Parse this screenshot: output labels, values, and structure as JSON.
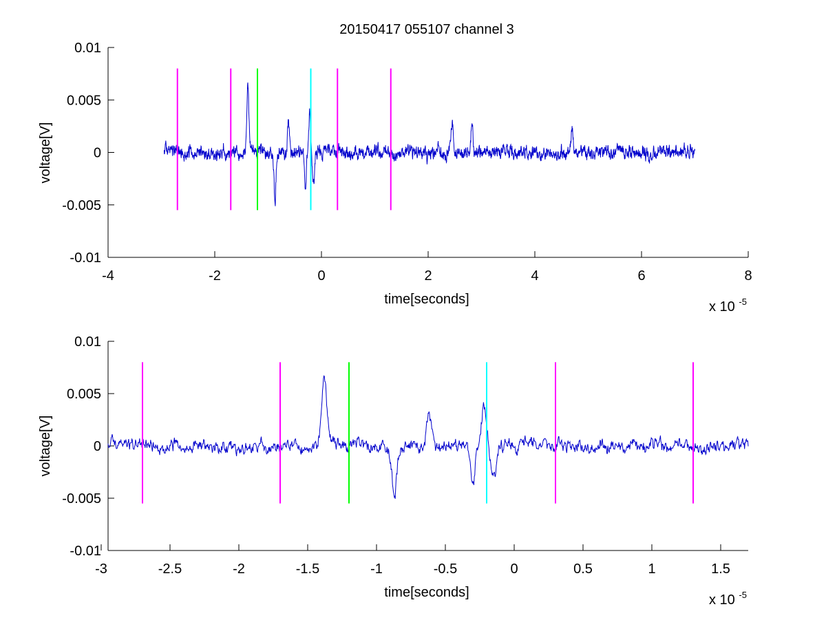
{
  "figure": {
    "title": "20150417 055107 channel 3"
  },
  "chart_data": [
    {
      "type": "line",
      "title": "20150417 055107 channel 3",
      "xlabel": "time[seconds]",
      "ylabel": "voltage[V]",
      "x_exponent_base": "x 10",
      "x_exponent_power": "-5",
      "xlim": [
        -4,
        8
      ],
      "ylim": [
        -0.01,
        0.01
      ],
      "xticks": [
        -4,
        -2,
        0,
        2,
        4,
        6,
        8
      ],
      "xtick_labels": [
        "-4",
        "-2",
        "0",
        "2",
        "4",
        "6",
        "8"
      ],
      "yticks": [
        -0.01,
        -0.005,
        0,
        0.005,
        0.01
      ],
      "ytick_labels": [
        "-0.01",
        "-0.005",
        "0",
        "0.005",
        "0.01"
      ],
      "grid": false,
      "legend": "none",
      "signal": {
        "color": "#0000cc",
        "x_start": -2.95,
        "x_end": 7.0,
        "noise_amplitude": 0.0009,
        "events": [
          {
            "x": -1.38,
            "v": 0.0068
          },
          {
            "x": -0.87,
            "v": -0.0045
          },
          {
            "x": -0.62,
            "v": 0.0028
          },
          {
            "x": -0.3,
            "v": -0.0035
          },
          {
            "x": -0.22,
            "v": 0.0038
          },
          {
            "x": -0.15,
            "v": -0.0032
          },
          {
            "x": 2.45,
            "v": 0.0028
          },
          {
            "x": 2.82,
            "v": 0.0032
          },
          {
            "x": 4.7,
            "v": 0.0022
          }
        ]
      },
      "markers": [
        {
          "x": -2.7,
          "y_top": 0.008,
          "y_bottom": -0.0055,
          "color": "#ff00ff"
        },
        {
          "x": -1.7,
          "y_top": 0.008,
          "y_bottom": -0.0055,
          "color": "#ff00ff"
        },
        {
          "x": -1.2,
          "y_top": 0.008,
          "y_bottom": -0.0055,
          "color": "#00ff00"
        },
        {
          "x": -0.2,
          "y_top": 0.008,
          "y_bottom": -0.0055,
          "color": "#00ffff"
        },
        {
          "x": 0.3,
          "y_top": 0.008,
          "y_bottom": -0.0055,
          "color": "#ff00ff"
        },
        {
          "x": 1.3,
          "y_top": 0.008,
          "y_bottom": -0.0055,
          "color": "#ff00ff"
        }
      ]
    },
    {
      "type": "line",
      "title": "",
      "xlabel": "time[seconds]",
      "ylabel": "voltage[V]",
      "x_exponent_base": "x 10",
      "x_exponent_power": "-5",
      "xlim": [
        -2.95,
        1.7
      ],
      "ylim": [
        -0.01,
        0.01
      ],
      "xticks": [
        -3,
        -2.5,
        -2,
        -1.5,
        -1,
        -0.5,
        0,
        0.5,
        1,
        1.5
      ],
      "xtick_labels": [
        "-3",
        "-2.5",
        "-2",
        "-1.5",
        "-1",
        "-0.5",
        "0",
        "0.5",
        "1",
        "1.5"
      ],
      "yticks": [
        -0.01,
        -0.005,
        0,
        0.005,
        0.01
      ],
      "ytick_labels": [
        "-0.01",
        "-0.005",
        "0",
        "0.005",
        "0.01"
      ],
      "grid": false,
      "legend": "none",
      "signal": {
        "color": "#0000cc",
        "x_start": -2.95,
        "x_end": 1.7,
        "noise_amplitude": 0.0009,
        "events": [
          {
            "x": -1.38,
            "v": 0.0068
          },
          {
            "x": -0.87,
            "v": -0.0045
          },
          {
            "x": -0.62,
            "v": 0.0028
          },
          {
            "x": -0.3,
            "v": -0.0035
          },
          {
            "x": -0.22,
            "v": 0.0038
          },
          {
            "x": -0.15,
            "v": -0.0032
          }
        ]
      },
      "markers": [
        {
          "x": -2.7,
          "y_top": 0.008,
          "y_bottom": -0.0055,
          "color": "#ff00ff"
        },
        {
          "x": -1.7,
          "y_top": 0.008,
          "y_bottom": -0.0055,
          "color": "#ff00ff"
        },
        {
          "x": -1.2,
          "y_top": 0.008,
          "y_bottom": -0.0055,
          "color": "#00ff00"
        },
        {
          "x": -0.2,
          "y_top": 0.008,
          "y_bottom": -0.0055,
          "color": "#00ffff"
        },
        {
          "x": 0.3,
          "y_top": 0.008,
          "y_bottom": -0.0055,
          "color": "#ff00ff"
        },
        {
          "x": 1.3,
          "y_top": 0.008,
          "y_bottom": -0.0055,
          "color": "#ff00ff"
        }
      ]
    }
  ]
}
